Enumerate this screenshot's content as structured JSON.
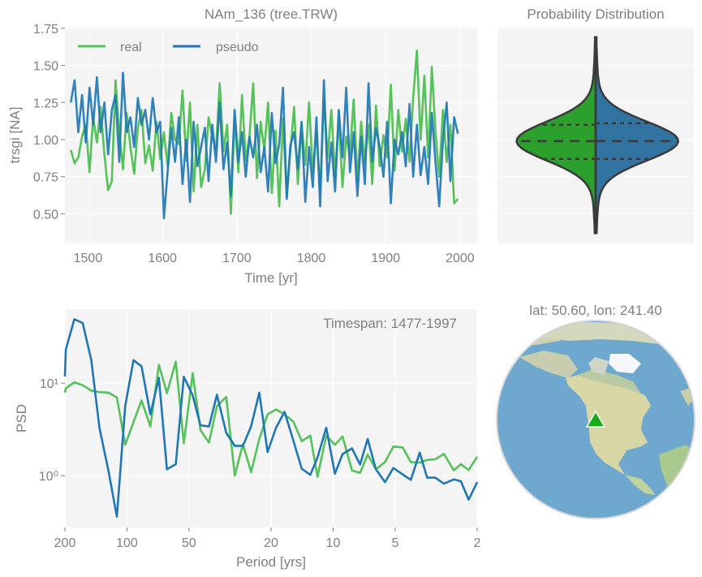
{
  "colors": {
    "real": "#55c25a",
    "pseudo": "#1f77b4",
    "violin_real": "#2ca02c",
    "violin_pseudo": "#3274a1",
    "axes_bg": "#f4f4f4",
    "grid": "#ffffff",
    "text": "#7f7f7f",
    "marker": "#1aab1a"
  },
  "chart_data": [
    {
      "type": "line",
      "title": "NAm_136 (tree.TRW)",
      "xlabel": "Time [yr]",
      "ylabel": "trsgi [NA]",
      "xlim": [
        1469,
        2023
      ],
      "ylim": [
        0.3,
        1.76
      ],
      "xticks": [
        1500,
        1600,
        1700,
        1800,
        1900,
        2000
      ],
      "xtick_labels": [
        "1500",
        "1600",
        "1700",
        "1800",
        "1900",
        "2000"
      ],
      "yticks": [
        0.5,
        0.75,
        1.0,
        1.25,
        1.5,
        1.75
      ],
      "ytick_labels": [
        "0.50",
        "0.75",
        "1.00",
        "1.25",
        "1.50",
        "1.75"
      ],
      "grid": true,
      "legend": "top-left",
      "x_start": 1477,
      "x_step": 5,
      "series": [
        {
          "name": "real",
          "color": "#55c25a",
          "values": [
            0.93,
            0.84,
            0.88,
            1.02,
            1.1,
            0.78,
            1.15,
            0.98,
            1.22,
            0.9,
            0.66,
            0.72,
            1.4,
            1.05,
            0.8,
            1.18,
            0.95,
            0.77,
            1.08,
            1.2,
            0.84,
            0.96,
            0.79,
            1.12,
            0.87,
            1.05,
            0.82,
            1.18,
            1.0,
            0.97,
            1.33,
            0.86,
            1.25,
            0.65,
            1.1,
            0.68,
            0.8,
            1.15,
            1.02,
            0.93,
            1.38,
            0.92,
            1.1,
            0.5,
            1.16,
            0.78,
            1.3,
            0.86,
            1.02,
            1.38,
            0.74,
            1.12,
            0.93,
            1.25,
            0.64,
            1.06,
            0.55,
            1.14,
            0.62,
            0.92,
            1.22,
            0.7,
            1.1,
            0.83,
            1.25,
            0.78,
            1.05,
            0.65,
            1.28,
            0.88,
            1.2,
            0.75,
            1.15,
            0.68,
            1.02,
            0.9,
            1.27,
            0.72,
            1.12,
            0.85,
            1.1,
            0.7,
            1.23,
            0.82,
            1.03,
            0.88,
            1.37,
            0.79,
            1.2,
            0.92,
            1.14,
            0.85,
            1.28,
            1.6,
            1.0,
            1.43,
            0.88,
            1.49,
            1.05,
            0.75,
            1.2,
            0.85,
            1.1,
            0.57,
            0.6
          ]
        },
        {
          "name": "pseudo",
          "color": "#1f77b4",
          "values": [
            1.25,
            1.4,
            1.05,
            1.3,
            0.98,
            1.35,
            1.1,
            1.42,
            1.05,
            1.25,
            0.9,
            1.2,
            1.3,
            0.85,
            1.45,
            1.05,
            1.15,
            0.95,
            1.28,
            1.1,
            1.2,
            1.0,
            1.28,
            1.05,
            1.12,
            0.47,
            0.78,
            1.08,
            0.85,
            1.15,
            0.7,
            1.0,
            0.58,
            1.12,
            0.82,
            0.95,
            1.08,
            0.72,
            1.1,
            0.85,
            1.25,
            0.8,
            0.98,
            0.62,
            1.2,
            0.85,
            1.05,
            0.75,
            1.02,
            0.88,
            1.1,
            0.78,
            0.95,
            0.65,
            1.18,
            0.84,
            0.97,
            1.35,
            0.6,
            0.96,
            1.05,
            0.8,
            1.12,
            0.58,
            0.95,
            0.68,
            1.15,
            0.55,
            1.4,
            0.72,
            0.98,
            0.65,
            1.2,
            0.88,
            1.35,
            0.78,
            1.05,
            0.62,
            1.02,
            0.7,
            1.38,
            0.85,
            1.08,
            0.95,
            0.75,
            1.12,
            0.57,
            1.0,
            0.9,
            1.05,
            0.82,
            1.24,
            0.75,
            1.1,
            0.76,
            0.95,
            0.7,
            1.18,
            0.85,
            0.55,
            1.0,
            1.25,
            0.72,
            1.15,
            1.04
          ]
        }
      ]
    },
    {
      "type": "violin",
      "title": "Probability Distribution",
      "ylim": [
        0.3,
        1.76
      ],
      "grid": true,
      "series": [
        {
          "name": "real",
          "min": 0.37,
          "q1": 0.87,
          "median": 0.99,
          "q3": 1.1,
          "max": 1.69
        },
        {
          "name": "pseudo",
          "min": 0.37,
          "q1": 0.87,
          "median": 0.99,
          "q3": 1.11,
          "max": 1.69
        }
      ]
    },
    {
      "type": "line",
      "xscale": "log",
      "yscale": "log",
      "xlabel": "Period [yrs]",
      "ylabel": "PSD",
      "xlim": [
        200,
        2
      ],
      "ylim": [
        0.275,
        63
      ],
      "xticks": [
        200,
        100,
        50,
        20,
        10,
        5,
        2
      ],
      "xtick_labels": [
        "200",
        "100",
        "50",
        "20",
        "10",
        "5",
        "2"
      ],
      "yticks": [
        1,
        10
      ],
      "ytick_labels": [
        "10⁰",
        "10¹"
      ],
      "grid": true,
      "annotation": "Timespan: 1477-1997",
      "x": [
        200,
        198,
        180,
        164,
        149,
        136,
        123,
        112,
        102,
        93,
        85,
        77,
        70,
        64,
        58,
        53,
        48,
        44,
        40,
        36.6,
        33,
        30,
        27.4,
        25,
        22.8,
        20.8,
        18.9,
        17.2,
        15.6,
        14.2,
        12.9,
        11.9,
        10.8,
        9.8,
        9.0,
        8.1,
        7.4,
        6.8,
        6.2,
        5.6,
        5.1,
        4.6,
        4.2,
        3.8,
        3.5,
        3.2,
        2.9,
        2.6,
        2.4,
        2.2,
        2.0
      ],
      "series": [
        {
          "name": "real",
          "color": "#55c25a",
          "values": [
            7.9,
            8.8,
            10.2,
            9.5,
            8.3,
            8.0,
            7.9,
            7.0,
            2.16,
            3.8,
            6.5,
            3.4,
            15.8,
            7.8,
            17.1,
            2.24,
            12.8,
            3.1,
            2.28,
            5.65,
            7.1,
            1.0,
            2.2,
            1.09,
            2.5,
            4.6,
            5.2,
            4.6,
            3.85,
            2.36,
            2.7,
            0.97,
            2.7,
            2.16,
            2.65,
            1.14,
            1.07,
            1.69,
            1.17,
            1.4,
            2.06,
            2.02,
            1.4,
            1.38,
            1.48,
            1.5,
            1.72,
            1.14,
            1.33,
            1.15,
            1.6
          ]
        },
        {
          "name": "pseudo",
          "color": "#1f77b4",
          "values": [
            11.8,
            23.1,
            49,
            44.7,
            17.7,
            3.3,
            1.13,
            0.36,
            5.65,
            17.7,
            15.2,
            4.6,
            11.4,
            1.17,
            1.33,
            11.7,
            7.4,
            3.5,
            3.4,
            7.5,
            2.9,
            2.1,
            2.1,
            3.4,
            7.9,
            1.8,
            3.3,
            4.9,
            2.4,
            1.19,
            1.02,
            1.58,
            3.3,
            1.05,
            1.71,
            1.97,
            1.32,
            2.49,
            1.17,
            0.85,
            1.21,
            1.03,
            0.9,
            1.77,
            0.95,
            0.95,
            0.82,
            0.91,
            0.87,
            0.55,
            0.85
          ]
        }
      ]
    }
  ],
  "map": {
    "title": "lat: 50.60, lon: 241.40",
    "lat": 50.6,
    "lon": 241.4,
    "marker": "triangle",
    "projection": "orthographic"
  }
}
